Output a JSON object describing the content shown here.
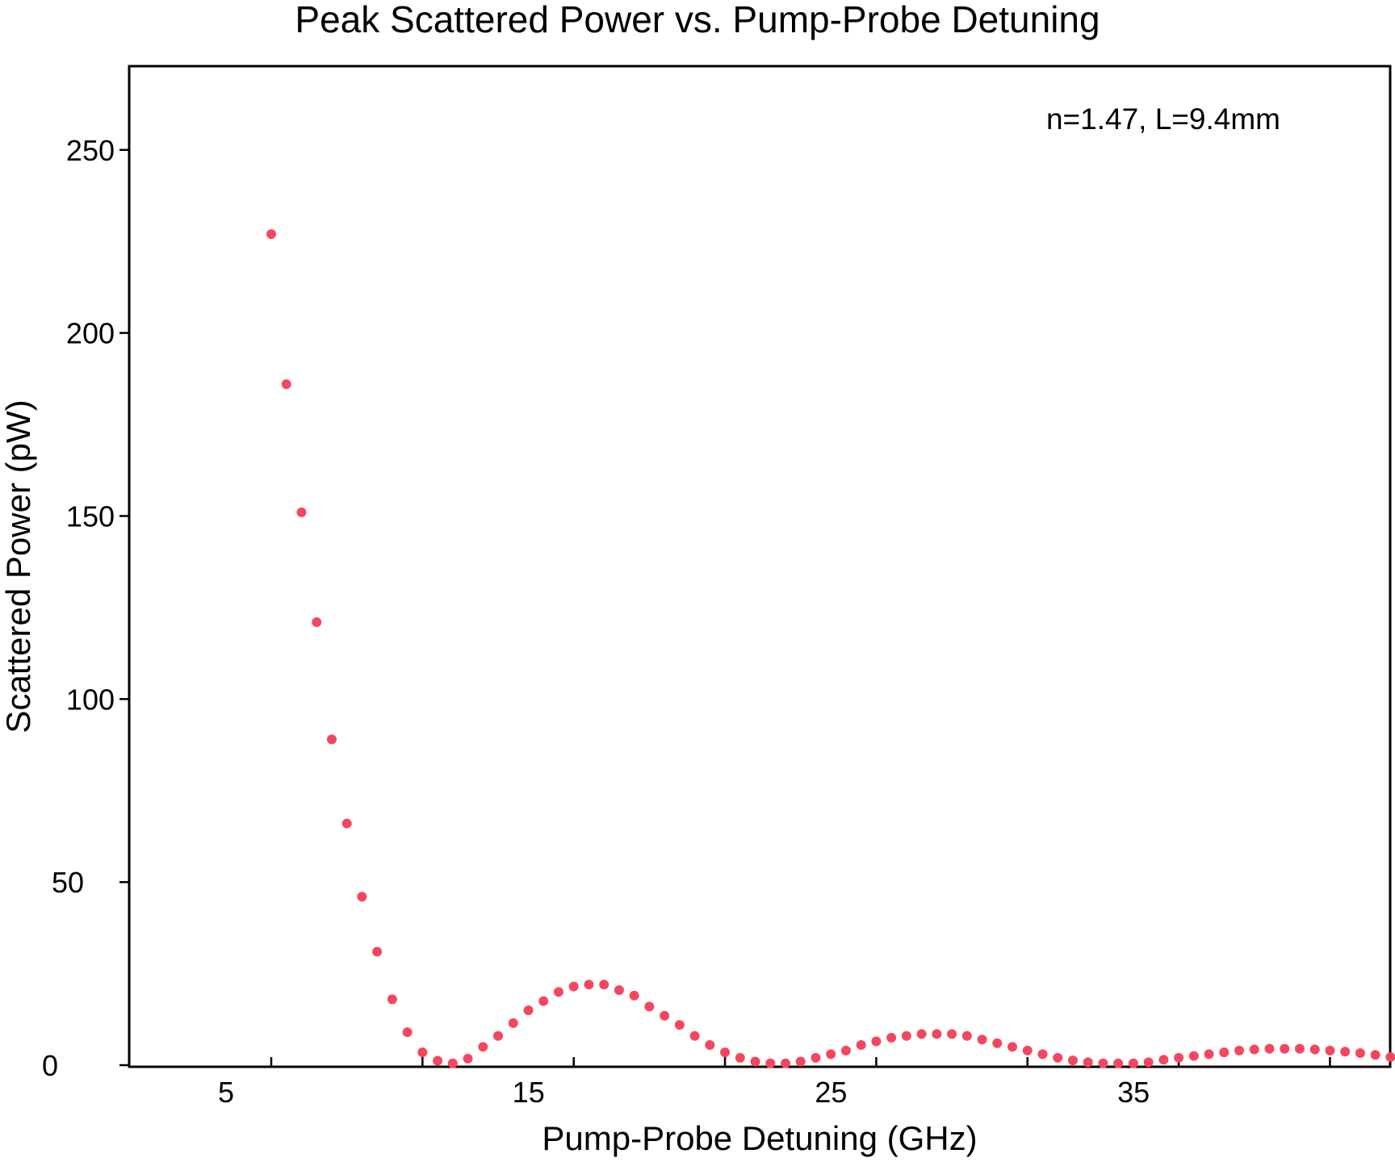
{
  "chart_data": {
    "type": "scatter",
    "title": "Peak Scattered Power vs. Pump-Probe Detuning",
    "xlabel": "Pump-Probe Detuning (GHz)",
    "ylabel": "Scattered Power (pW)",
    "annotation": "n=1.47, L=9.4mm",
    "xlim": [
      0,
      42
    ],
    "ylim": [
      0,
      275
    ],
    "x_ticks": [
      5,
      10,
      15,
      20,
      25,
      30,
      35,
      40
    ],
    "x_tick_labels": [
      {
        "value": 5,
        "label": "5"
      },
      {
        "value": 15,
        "label": "15"
      },
      {
        "value": 25,
        "label": "25"
      },
      {
        "value": 35,
        "label": "35"
      }
    ],
    "y_ticks": [
      0,
      50,
      100,
      150,
      200,
      250
    ],
    "y_tick_labels": [
      "0",
      "50",
      "100",
      "150",
      "200",
      "250"
    ],
    "grid": false,
    "marker_color": "#f4475f",
    "series": [
      {
        "name": "",
        "points": [
          [
            5.0,
            227
          ],
          [
            5.5,
            186
          ],
          [
            6.0,
            151
          ],
          [
            6.5,
            121
          ],
          [
            7.0,
            89
          ],
          [
            7.5,
            66
          ],
          [
            8.0,
            46
          ],
          [
            8.5,
            31
          ],
          [
            9.0,
            18
          ],
          [
            9.5,
            9
          ],
          [
            10.0,
            3.5
          ],
          [
            10.5,
            1.2
          ],
          [
            11.0,
            0.5
          ],
          [
            11.5,
            1.8
          ],
          [
            12.0,
            5
          ],
          [
            12.5,
            8
          ],
          [
            13.0,
            11.5
          ],
          [
            13.5,
            15
          ],
          [
            14.0,
            17.5
          ],
          [
            14.5,
            20
          ],
          [
            15.0,
            21.5
          ],
          [
            15.5,
            22
          ],
          [
            16.0,
            22
          ],
          [
            16.5,
            20.5
          ],
          [
            17.0,
            19
          ],
          [
            17.5,
            16
          ],
          [
            18.0,
            13.5
          ],
          [
            18.5,
            11
          ],
          [
            19.0,
            8
          ],
          [
            19.5,
            5.5
          ],
          [
            20.0,
            3.5
          ],
          [
            20.5,
            2
          ],
          [
            21.0,
            1
          ],
          [
            21.5,
            0.5
          ],
          [
            22.0,
            0.5
          ],
          [
            22.5,
            1
          ],
          [
            23.0,
            2
          ],
          [
            23.5,
            3
          ],
          [
            24.0,
            4
          ],
          [
            24.5,
            5.5
          ],
          [
            25.0,
            6.5
          ],
          [
            25.5,
            7.5
          ],
          [
            26.0,
            8
          ],
          [
            26.5,
            8.5
          ],
          [
            27.0,
            8.5
          ],
          [
            27.5,
            8.5
          ],
          [
            28.0,
            8
          ],
          [
            28.5,
            7
          ],
          [
            29.0,
            6
          ],
          [
            29.5,
            5
          ],
          [
            30.0,
            4
          ],
          [
            30.5,
            3
          ],
          [
            31.0,
            2
          ],
          [
            31.5,
            1.3
          ],
          [
            32.0,
            0.8
          ],
          [
            32.5,
            0.5
          ],
          [
            33.0,
            0.5
          ],
          [
            33.5,
            0.5
          ],
          [
            34.0,
            0.8
          ],
          [
            34.5,
            1.5
          ],
          [
            35.0,
            2
          ],
          [
            35.5,
            2.5
          ],
          [
            36.0,
            3
          ],
          [
            36.5,
            3.5
          ],
          [
            37.0,
            4
          ],
          [
            37.5,
            4.3
          ],
          [
            38.0,
            4.5
          ],
          [
            38.5,
            4.5
          ],
          [
            39.0,
            4.5
          ],
          [
            39.5,
            4.3
          ],
          [
            40.0,
            4
          ],
          [
            40.5,
            3.7
          ],
          [
            41.0,
            3.3
          ],
          [
            41.5,
            2.8
          ],
          [
            42.0,
            2.2
          ]
        ]
      }
    ]
  }
}
